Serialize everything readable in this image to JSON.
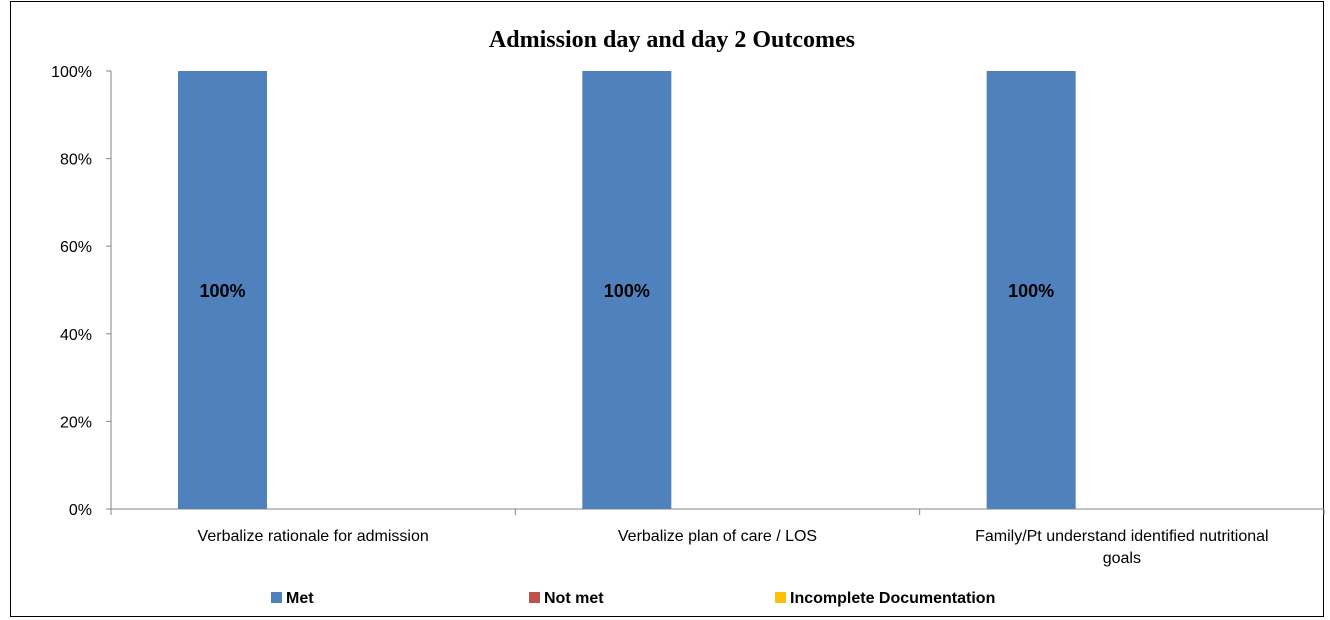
{
  "chart_data": {
    "type": "bar",
    "title": "Admission day and day 2 Outcomes",
    "categories": [
      [
        "Verbalize rationale for admission"
      ],
      [
        "Verbalize plan of care / LOS"
      ],
      [
        "Family/Pt understand identified nutritional",
        "goals"
      ]
    ],
    "series": [
      {
        "name": "Met",
        "color": "#4F81BD",
        "values": [
          100,
          100,
          100
        ],
        "labels": [
          "100%",
          "100%",
          "100%"
        ]
      },
      {
        "name": "Not met",
        "color": "#C0504D",
        "values": [
          0,
          0,
          0
        ],
        "labels": [
          "",
          "",
          ""
        ]
      },
      {
        "name": "Incomplete Documentation",
        "color": "#FFC000",
        "values": [
          0,
          0,
          0
        ],
        "labels": [
          "",
          "",
          ""
        ]
      }
    ],
    "ylim": [
      0,
      100
    ],
    "yticks": [
      "0%",
      "20%",
      "40%",
      "60%",
      "80%",
      "100%"
    ],
    "grid": false,
    "legend": "bottom"
  }
}
